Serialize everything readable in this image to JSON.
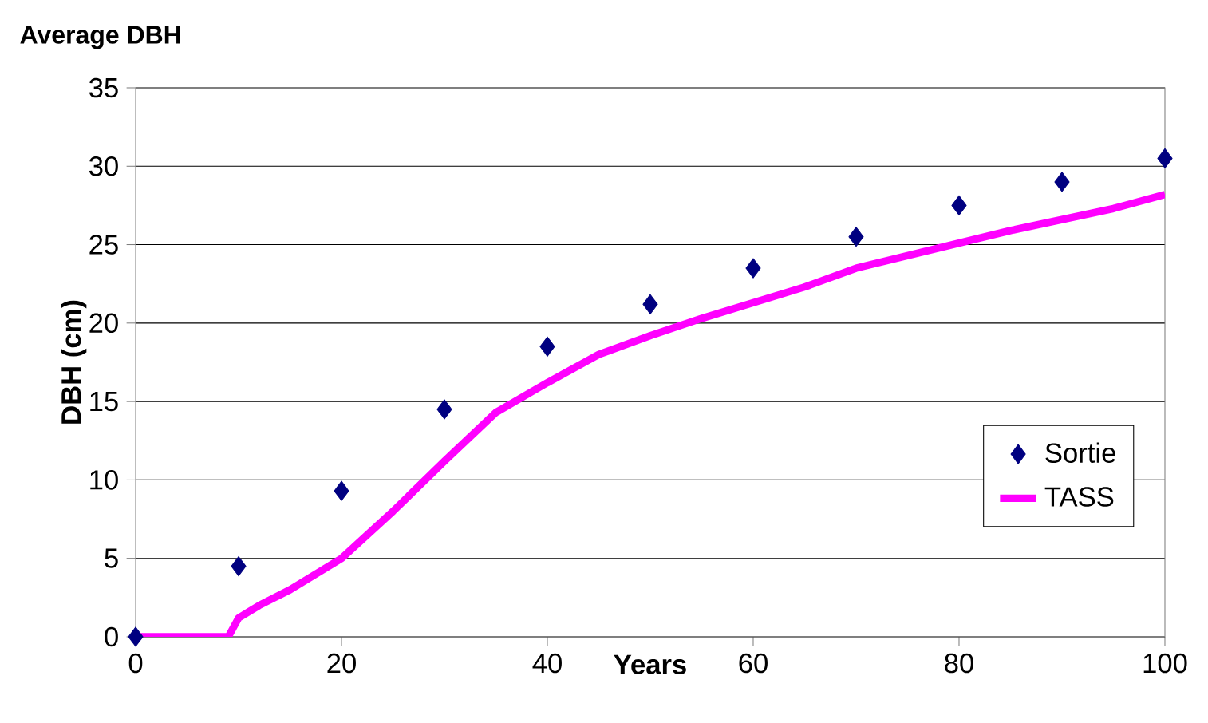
{
  "chart_data": {
    "type": "scatter",
    "title": "Average DBH",
    "xlabel": "Years",
    "ylabel": "DBH (cm)",
    "xlim": [
      0,
      100
    ],
    "xticks": [
      0,
      20,
      40,
      60,
      80,
      100
    ],
    "ylim": [
      0,
      35
    ],
    "yticks": [
      0,
      5,
      10,
      15,
      20,
      25,
      30,
      35
    ],
    "grid": "y",
    "legend": "bottom right",
    "series": [
      {
        "name": "Sortie",
        "marker": "diamond",
        "color": "#000080",
        "x": [
          0,
          10,
          20,
          30,
          40,
          50,
          60,
          70,
          80,
          90,
          100
        ],
        "values": [
          0,
          4.5,
          9.3,
          14.5,
          18.5,
          21.2,
          23.5,
          25.5,
          27.5,
          29,
          30.5
        ]
      },
      {
        "name": "TASS",
        "type": "line",
        "marker": "none",
        "line_style": "solid",
        "color": "#ff00ff",
        "x": [
          0,
          9,
          10,
          12,
          15,
          20,
          25,
          30,
          35,
          40,
          45,
          50,
          55,
          60,
          65,
          70,
          75,
          80,
          85,
          90,
          95,
          100
        ],
        "values": [
          0,
          0,
          1.2,
          2,
          3,
          5,
          8,
          11.2,
          14.3,
          16.2,
          18,
          19.2,
          20.3,
          21.3,
          22.3,
          23.5,
          24.3,
          25.1,
          25.9,
          26.6,
          27.3,
          28.2
        ]
      }
    ]
  }
}
